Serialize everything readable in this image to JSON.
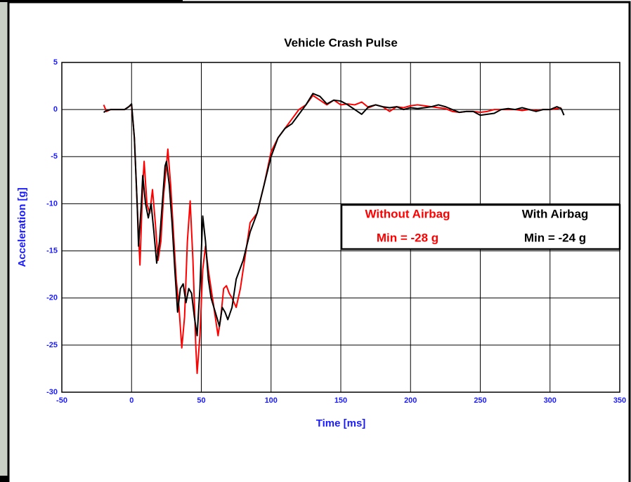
{
  "chart_data": {
    "type": "line",
    "title": "Vehicle Crash Pulse",
    "x_label": "Time [ms]",
    "y_label": "Acceleration [g]",
    "xlim": [
      -50,
      350
    ],
    "ylim": [
      -30,
      5
    ],
    "xticks": [
      -50,
      0,
      50,
      100,
      150,
      200,
      250,
      300,
      350
    ],
    "yticks": [
      5,
      0,
      -5,
      -10,
      -15,
      -20,
      -25,
      -30
    ],
    "grid": true,
    "series": [
      {
        "name": "Without Airbag",
        "color": "#ff0000",
        "label": "Min = -28 g",
        "x": [
          -20,
          -18,
          -15,
          -10,
          -5,
          -2,
          0,
          2,
          4,
          6,
          8,
          9,
          11,
          13,
          15,
          17,
          19,
          21,
          23,
          25,
          26,
          28,
          30,
          32,
          34,
          36,
          38,
          40,
          42,
          44,
          46,
          47,
          49,
          51,
          53,
          55,
          58,
          60,
          62,
          64,
          66,
          68,
          70,
          72,
          75,
          78,
          80,
          85,
          90,
          95,
          100,
          105,
          110,
          115,
          120,
          125,
          130,
          135,
          140,
          145,
          150,
          155,
          160,
          165,
          170,
          175,
          180,
          185,
          190,
          195,
          200,
          205,
          210,
          215,
          220,
          225,
          230,
          235,
          240,
          245,
          250,
          255,
          260,
          265,
          270,
          275,
          280,
          285,
          290,
          295,
          300,
          305,
          308
        ],
        "values": [
          0.5,
          -0.2,
          0,
          0,
          0,
          0.3,
          0.5,
          -3,
          -10,
          -16.5,
          -8,
          -5.5,
          -10,
          -11,
          -8.5,
          -12,
          -16,
          -14,
          -9,
          -6,
          -4.2,
          -8,
          -13,
          -18,
          -21,
          -25.3,
          -22,
          -14,
          -9.7,
          -16,
          -25,
          -28,
          -24,
          -17,
          -14.5,
          -17,
          -20,
          -22,
          -24,
          -22,
          -19,
          -18.7,
          -19.5,
          -20,
          -21,
          -19,
          -17,
          -12,
          -11,
          -8,
          -4.5,
          -3,
          -2,
          -1,
          0,
          0.5,
          1.5,
          1,
          0.5,
          1,
          0.5,
          0.6,
          0.5,
          0.8,
          0.2,
          0.5,
          0.3,
          -0.2,
          0.3,
          0.2,
          0.4,
          0.5,
          0.4,
          0.3,
          0.2,
          0.1,
          -0.2,
          -0.3,
          -0.2,
          -0.2,
          -0.3,
          -0.2,
          0,
          0,
          0,
          0,
          -0.1,
          0,
          -0.1,
          0,
          0,
          0.1,
          0.2
        ]
      },
      {
        "name": "With Airbag",
        "color": "#000000",
        "label": "Min = -24 g",
        "x": [
          -20,
          -18,
          -15,
          -10,
          -5,
          -2,
          0,
          2,
          4,
          5,
          7,
          8,
          10,
          12,
          14,
          16,
          18,
          20,
          22,
          24,
          25,
          27,
          29,
          31,
          33,
          35,
          37,
          39,
          41,
          43,
          45,
          47,
          49,
          51,
          53,
          55,
          57,
          59,
          61,
          63,
          65,
          67,
          69,
          72,
          75,
          80,
          85,
          90,
          95,
          100,
          105,
          110,
          115,
          120,
          125,
          130,
          135,
          140,
          145,
          150,
          155,
          160,
          165,
          170,
          175,
          180,
          185,
          190,
          195,
          200,
          205,
          210,
          215,
          220,
          225,
          230,
          235,
          240,
          245,
          250,
          255,
          260,
          265,
          270,
          275,
          280,
          285,
          290,
          295,
          300,
          305,
          308,
          310
        ],
        "values": [
          -0.3,
          -0.1,
          0,
          0,
          0,
          0.3,
          0.6,
          -3,
          -10,
          -14.5,
          -10,
          -7,
          -10,
          -11.5,
          -10,
          -13,
          -16.3,
          -14,
          -10,
          -6,
          -5.5,
          -8,
          -12,
          -17,
          -21.5,
          -19,
          -18.5,
          -20.5,
          -19,
          -19.5,
          -22,
          -24,
          -19,
          -11.3,
          -14,
          -18,
          -20,
          -21,
          -22,
          -23,
          -21,
          -21.5,
          -22.3,
          -21,
          -18,
          -16,
          -13,
          -11,
          -8,
          -5,
          -3,
          -2,
          -1.5,
          -0.5,
          0.5,
          1.7,
          1.4,
          0.6,
          1,
          0.9,
          0.5,
          0,
          -0.5,
          0.3,
          0.5,
          0.3,
          0.2,
          0.3,
          0,
          0.2,
          0.1,
          0.2,
          0.3,
          0.5,
          0.3,
          0,
          -0.3,
          -0.2,
          -0.2,
          -0.6,
          -0.5,
          -0.4,
          0,
          0.1,
          0,
          0.2,
          0,
          -0.2,
          0,
          0,
          0.3,
          0.1,
          -0.6
        ]
      }
    ]
  }
}
